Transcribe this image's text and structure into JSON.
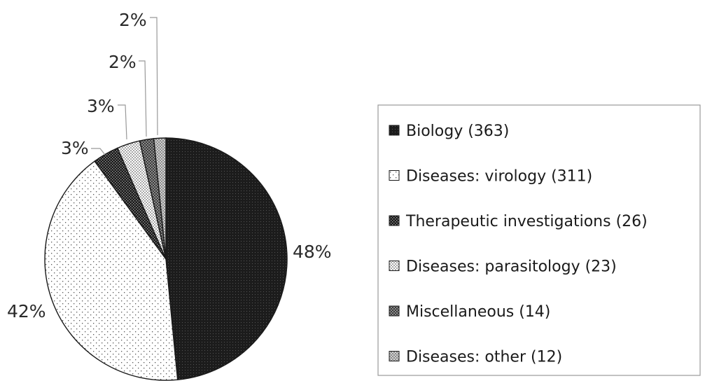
{
  "chart_data": {
    "type": "pie",
    "title": "",
    "legend_position": "right",
    "slices": [
      {
        "name": "Biology (363)",
        "value": 363,
        "label": "48%",
        "pattern": "pat-biology"
      },
      {
        "name": "Diseases: virology (311)",
        "value": 311,
        "label": "42%",
        "pattern": "pat-virology"
      },
      {
        "name": "Therapeutic investigations (26)",
        "value": 26,
        "label": "3%",
        "pattern": "pat-therapeutic"
      },
      {
        "name": "Diseases: parasitology (23)",
        "value": 23,
        "label": "3%",
        "pattern": "pat-parasitology"
      },
      {
        "name": "Miscellaneous (14)",
        "value": 14,
        "label": "2%",
        "pattern": "pat-misc"
      },
      {
        "name": "Diseases: other (12)",
        "value": 12,
        "label": "2%",
        "pattern": "pat-other"
      }
    ]
  }
}
